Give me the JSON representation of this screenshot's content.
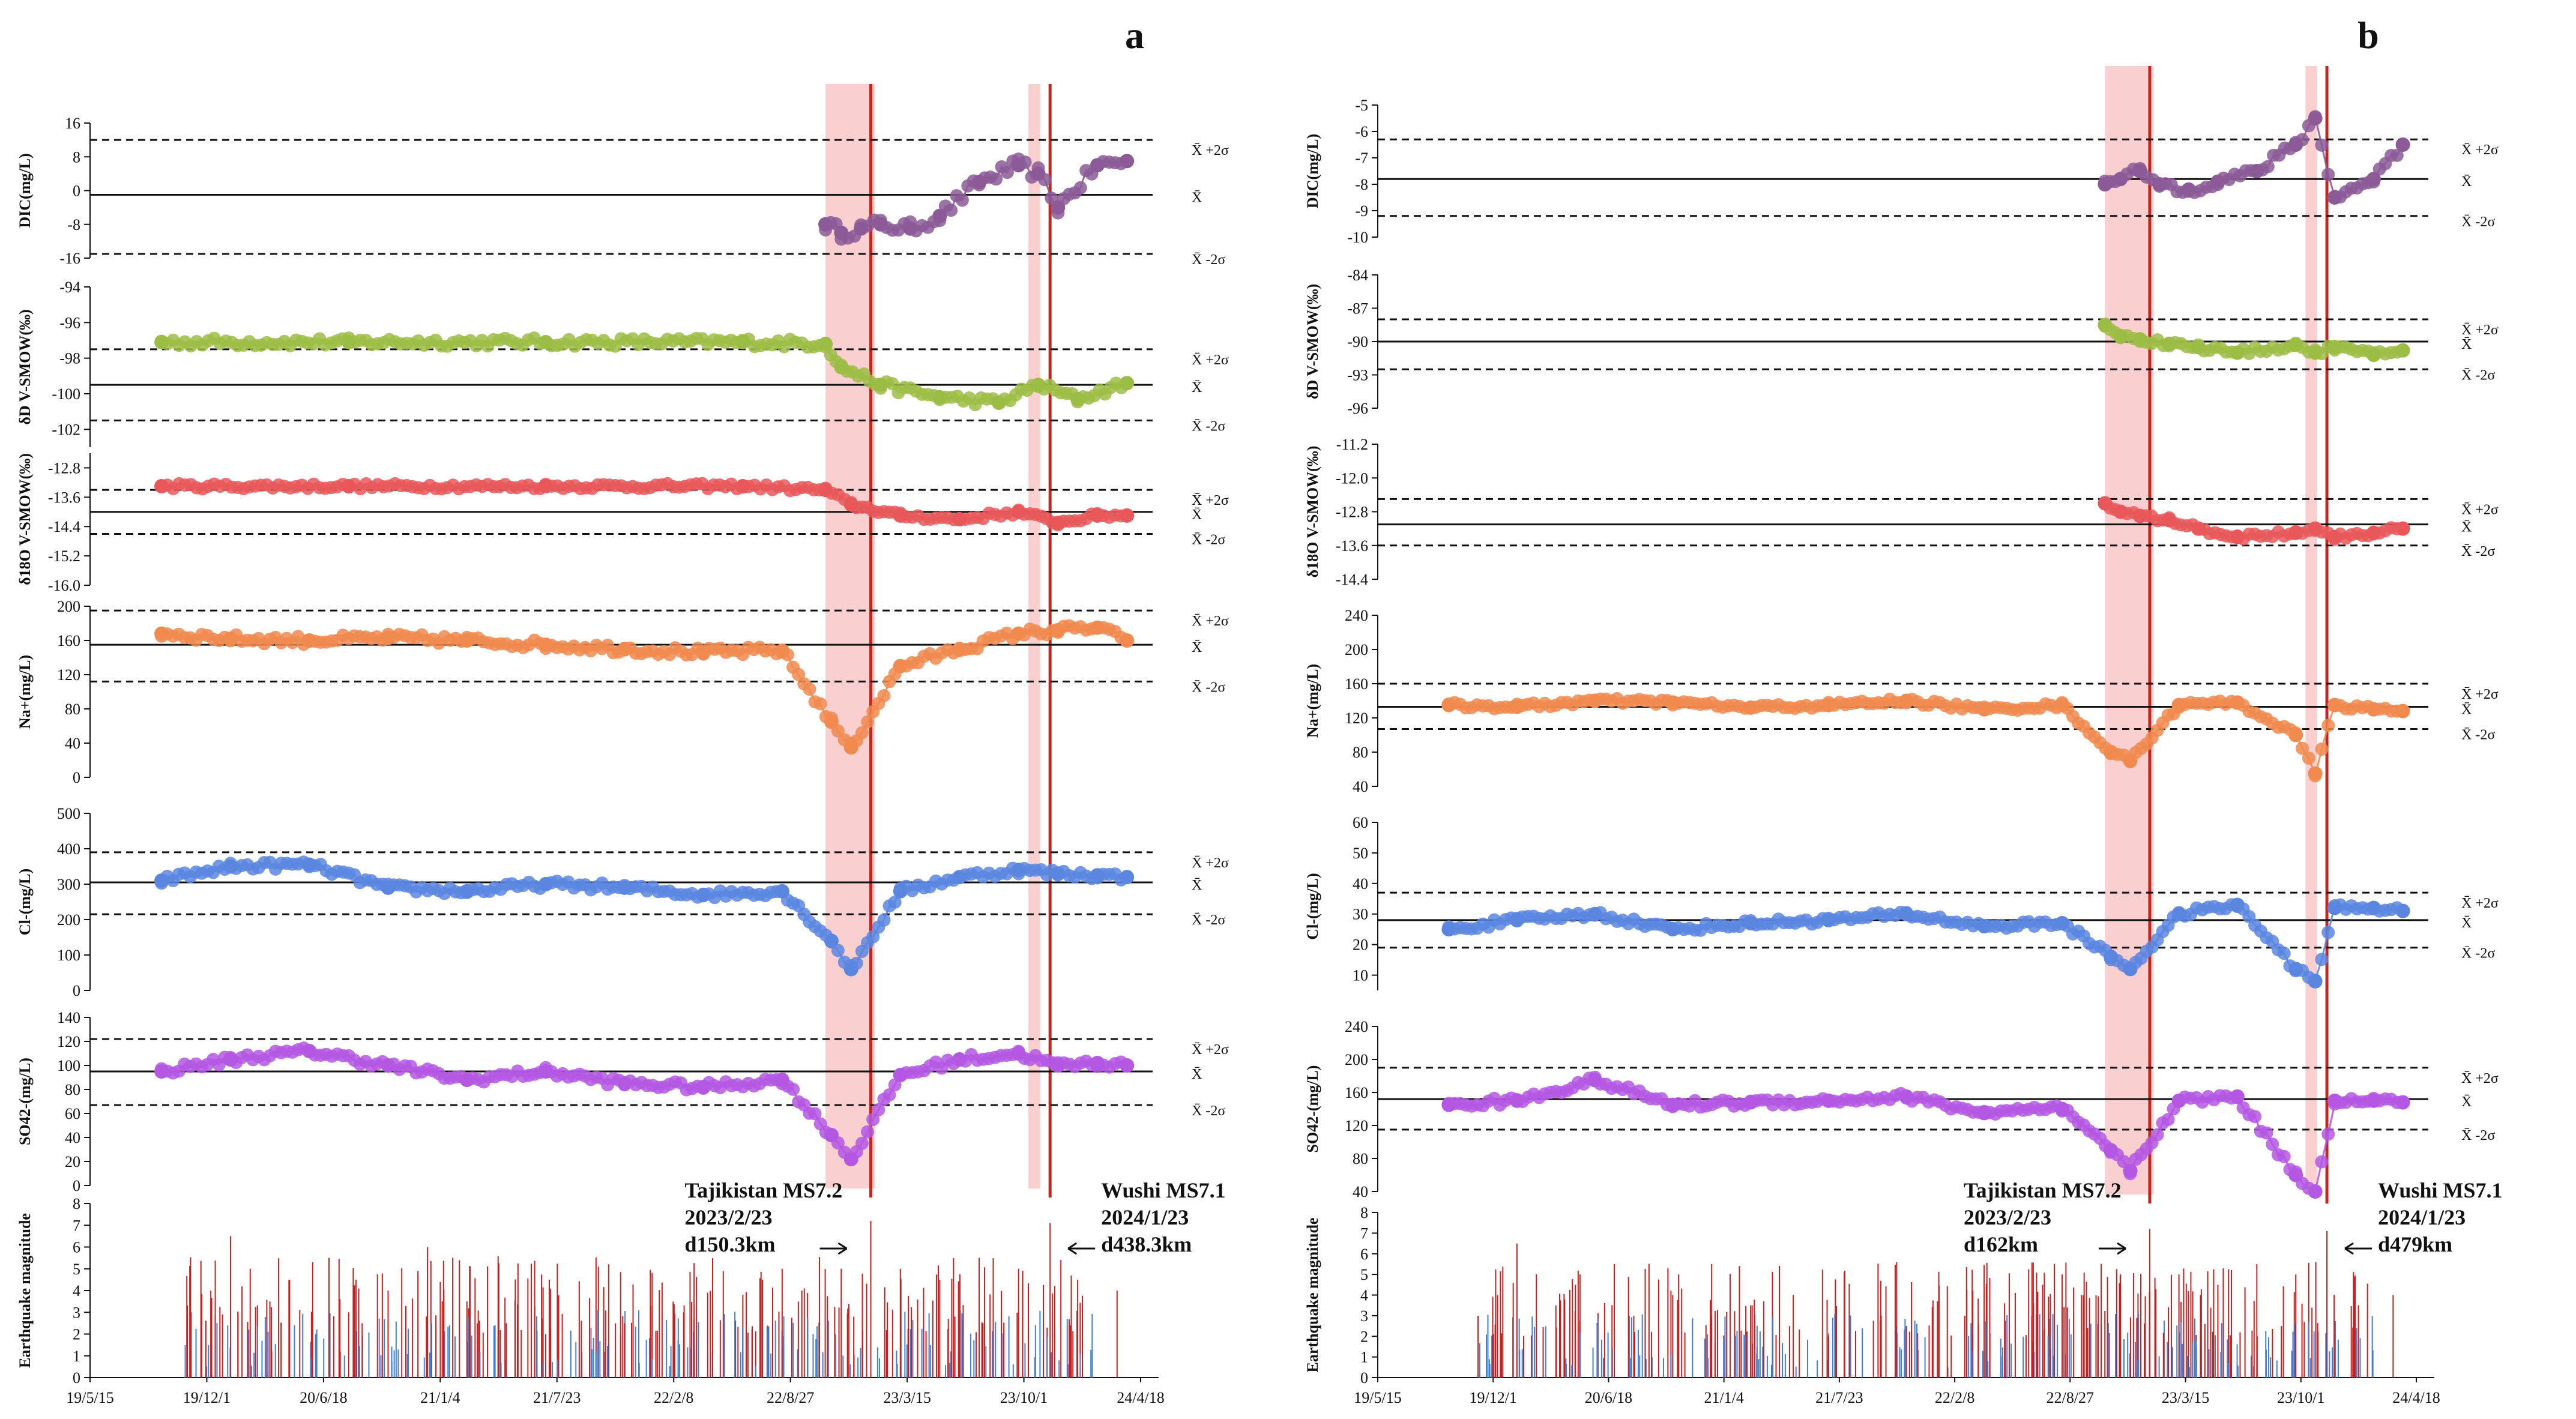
{
  "colors": {
    "dic": "#8b5a97",
    "dD": "#9cbd45",
    "d18O": "#e8585a",
    "na": "#f08a4f",
    "cl": "#5b86e0",
    "so4": "#b457e3",
    "eq_red": "#c81e1e",
    "eq_blue": "#3d7fd8",
    "shade": "#f8b6b6",
    "vline": "#c0281f"
  },
  "x_axis": {
    "labels": [
      "19/5/15",
      "19/12/1",
      "20/6/18",
      "21/1/4",
      "21/7/23",
      "22/2/8",
      "22/8/27",
      "23/3/15",
      "23/10/1",
      "24/4/18"
    ]
  },
  "band_labels": {
    "upper": "X̄ +2σ",
    "mean": "X̄",
    "lower": "X̄ -2σ"
  },
  "panels": [
    {
      "letter": "a",
      "shade_windows": [
        [
          2022.92,
          2023.17
        ],
        [
          2023.95,
          2024.01
        ]
      ],
      "vlines": [
        2023.15,
        2024.06
      ],
      "earthquakes": [
        {
          "label_line1": "Tajikistan MS7.2",
          "label_line2": "2023/2/23",
          "label_line3": "d150.3km"
        },
        {
          "label_line1": "Wushi MS7.1",
          "label_line2": "2024/1/23",
          "label_line3": "d438.3km"
        }
      ],
      "subplots": [
        {
          "key": "dic",
          "ylabel": "DIC(mg/L)",
          "yticks": [
            "16",
            "8",
            "0",
            "-8",
            "-16"
          ],
          "ymin": -16,
          "ymax": 16,
          "mean": -1,
          "upper": 12,
          "lower": -15
        },
        {
          "key": "dD",
          "ylabel": "δD V-SMOW(‰)",
          "yticks": [
            "-94",
            "-96",
            "-98",
            "-100",
            "-102"
          ],
          "ymin": -103,
          "ymax": -94,
          "mean": -99.5,
          "upper": -97.5,
          "lower": -101.5
        },
        {
          "key": "d18O",
          "ylabel": "δ18O V-SMOW(‰)",
          "yticks": [
            "-12.8",
            "-13.6",
            "-14.4",
            "-15.2",
            "-16.0"
          ],
          "ymin": -16.0,
          "ymax": -12.4,
          "mean": -14.0,
          "upper": -13.4,
          "lower": -14.6
        },
        {
          "key": "na",
          "ylabel": "Na+(mg/L)",
          "yticks": [
            "200",
            "160",
            "120",
            "80",
            "40",
            "0"
          ],
          "ymin": 0,
          "ymax": 200,
          "mean": 155,
          "upper": 195,
          "lower": 112
        },
        {
          "key": "cl",
          "ylabel": "Cl-(mg/L)",
          "yticks": [
            "500",
            "400",
            "300",
            "200",
            "100",
            "0"
          ],
          "ymin": 0,
          "ymax": 500,
          "mean": 305,
          "upper": 390,
          "lower": 215
        },
        {
          "key": "so4",
          "ylabel": "SO42-(mg/L)",
          "yticks": [
            "140",
            "120",
            "100",
            "80",
            "60",
            "40",
            "20",
            "0"
          ],
          "ymin": 0,
          "ymax": 140,
          "mean": 95,
          "upper": 122,
          "lower": 67
        },
        {
          "key": "eq",
          "ylabel": "Earthquake magnitude",
          "yticks": [
            "8",
            "7",
            "6",
            "5",
            "4",
            "3",
            "2",
            "1",
            "0"
          ],
          "ymin": 0,
          "ymax": 8
        }
      ]
    },
    {
      "letter": "b",
      "shade_windows": [
        [
          2022.92,
          2023.17
        ],
        [
          2023.95,
          2024.01
        ]
      ],
      "vlines": [
        2023.15,
        2024.06
      ],
      "earthquakes": [
        {
          "label_line1": "Tajikistan MS7.2",
          "label_line2": "2023/2/23",
          "label_line3": "d162km"
        },
        {
          "label_line1": "Wushi MS7.1",
          "label_line2": "2024/1/23",
          "label_line3": "d479km"
        }
      ],
      "subplots": [
        {
          "key": "dic",
          "ylabel": "DIC(mg/L)",
          "yticks": [
            "-5",
            "-6",
            "-7",
            "-8",
            "-9",
            "-10"
          ],
          "ymin": -10,
          "ymax": -5,
          "mean": -7.8,
          "upper": -6.3,
          "lower": -9.2
        },
        {
          "key": "dD",
          "ylabel": "δD V-SMOW(‰)",
          "yticks": [
            "-84",
            "-87",
            "-90",
            "-93",
            "-96"
          ],
          "ymin": -96,
          "ymax": -84,
          "mean": -90,
          "upper": -88,
          "lower": -92.5
        },
        {
          "key": "d18O",
          "ylabel": "δ18O V-SMOW(‰)",
          "yticks": [
            "-11.2",
            "-12.0",
            "-12.8",
            "-13.6",
            "-14.4"
          ],
          "ymin": -14.4,
          "ymax": -11.2,
          "mean": -13.1,
          "upper": -12.5,
          "lower": -13.6
        },
        {
          "key": "na",
          "ylabel": "Na+(mg/L)",
          "yticks": [
            "240",
            "200",
            "160",
            "120",
            "80",
            "40"
          ],
          "ymin": 40,
          "ymax": 240,
          "mean": 133,
          "upper": 160,
          "lower": 107
        },
        {
          "key": "cl",
          "ylabel": "Cl-(mg/L)",
          "yticks": [
            "60",
            "50",
            "40",
            "30",
            "20",
            "10"
          ],
          "ymin": 5,
          "ymax": 60,
          "mean": 28,
          "upper": 37,
          "lower": 19
        },
        {
          "key": "so4",
          "ylabel": "SO42-(mg/L)",
          "yticks": [
            "240",
            "200",
            "160",
            "120",
            "80",
            "40"
          ],
          "ymin": 40,
          "ymax": 240,
          "mean": 152,
          "upper": 190,
          "lower": 115
        },
        {
          "key": "eq",
          "ylabel": "Earthquake magnitude",
          "yticks": [
            "8",
            "7",
            "6",
            "5",
            "4",
            "3",
            "2",
            "1",
            "0"
          ],
          "ymin": 0,
          "ymax": 8
        }
      ]
    }
  ],
  "chart_data": [
    {
      "type": "scatter",
      "panel": "a",
      "title": "a",
      "x_range": [
        2019.37,
        2024.55
      ],
      "series": [
        {
          "name": "DIC(mg/L)",
          "x": [
            2022.92,
            2023.0,
            2023.1,
            2023.2,
            2023.35,
            2023.5,
            2023.7,
            2023.9,
            2024.0,
            2024.1,
            2024.3,
            2024.45
          ],
          "values": [
            -8,
            -10,
            -9,
            -8,
            -9,
            -6,
            2,
            6,
            4,
            -4,
            6,
            7
          ]
        },
        {
          "name": "δD V-SMOW(‰)",
          "x": [
            2019.55,
            2020.5,
            2021.5,
            2022.5,
            2022.92,
            2023.0,
            2023.2,
            2023.5,
            2023.8,
            2024.0,
            2024.2,
            2024.45
          ],
          "values": [
            -97.1,
            -97.1,
            -97.1,
            -97.1,
            -97.2,
            -98.5,
            -99.5,
            -100.2,
            -100.5,
            -99.5,
            -100.3,
            -99.4
          ]
        },
        {
          "name": "δ18O V-SMOW(‰)",
          "x": [
            2019.55,
            2020.5,
            2021.5,
            2022.5,
            2022.92,
            2023.05,
            2023.3,
            2023.6,
            2023.9,
            2024.1,
            2024.3,
            2024.45
          ],
          "values": [
            -13.3,
            -13.3,
            -13.3,
            -13.3,
            -13.4,
            -13.8,
            -14.1,
            -14.2,
            -14.0,
            -14.3,
            -14.1,
            -14.1
          ]
        },
        {
          "name": "Na+(mg/L)",
          "x": [
            2019.55,
            2019.9,
            2020.3,
            2020.7,
            2021.1,
            2021.5,
            2021.9,
            2022.3,
            2022.7,
            2022.95,
            2023.05,
            2023.3,
            2023.6,
            2023.9,
            2024.1,
            2024.3,
            2024.45
          ],
          "values": [
            168,
            162,
            160,
            163,
            160,
            155,
            150,
            146,
            148,
            65,
            35,
            130,
            150,
            168,
            172,
            175,
            160
          ]
        },
        {
          "name": "Cl-(mg/L)",
          "x": [
            2019.55,
            2019.9,
            2020.3,
            2020.7,
            2021.1,
            2021.5,
            2021.9,
            2022.3,
            2022.7,
            2022.95,
            2023.05,
            2023.3,
            2023.6,
            2023.9,
            2024.1,
            2024.3,
            2024.45
          ],
          "values": [
            310,
            350,
            355,
            290,
            280,
            300,
            290,
            270,
            280,
            140,
            60,
            280,
            320,
            340,
            330,
            325,
            320
          ]
        },
        {
          "name": "SO42-(mg/L)",
          "x": [
            2019.55,
            2019.9,
            2020.3,
            2020.7,
            2021.1,
            2021.5,
            2021.9,
            2022.3,
            2022.7,
            2022.95,
            2023.05,
            2023.3,
            2023.6,
            2023.9,
            2024.1,
            2024.3,
            2024.45
          ],
          "values": [
            95,
            105,
            112,
            100,
            88,
            95,
            85,
            82,
            88,
            42,
            22,
            92,
            105,
            110,
            100,
            102,
            100
          ]
        },
        {
          "name": "Earthquake magnitude",
          "x": [
            2019.7,
            2019.8,
            2019.9,
            2020.0,
            2020.1,
            2020.2,
            2020.4,
            2020.5,
            2020.7,
            2020.9,
            2021.1,
            2021.3,
            2021.5,
            2021.9,
            2022.2,
            2022.6,
            2022.7,
            2022.8,
            2023.0,
            2023.15,
            2023.3,
            2023.5,
            2023.7,
            2023.9,
            2024.06,
            2024.2,
            2024.4
          ],
          "values": [
            3.0,
            4.0,
            6.5,
            5.0,
            3.5,
            4.5,
            5.5,
            3.0,
            4.0,
            6.0,
            3.5,
            2.5,
            2.0,
            2.5,
            3.0,
            4.5,
            5.0,
            4.0,
            5.0,
            7.2,
            5.0,
            4.5,
            5.5,
            5.0,
            7.1,
            4.5,
            4.0
          ]
        }
      ],
      "xlabel": "",
      "ylabel": ""
    },
    {
      "type": "scatter",
      "panel": "b",
      "title": "b",
      "x_range": [
        2019.37,
        2024.55
      ],
      "series": [
        {
          "name": "DIC(mg/L)",
          "x": [
            2022.92,
            2023.0,
            2023.1,
            2023.2,
            2023.35,
            2023.5,
            2023.7,
            2023.9,
            2024.0,
            2024.1,
            2024.3,
            2024.45
          ],
          "values": [
            -8,
            -7.8,
            -7.5,
            -8,
            -8.2,
            -7.9,
            -7.5,
            -6.5,
            -5.5,
            -8.5,
            -7.8,
            -6.5
          ]
        },
        {
          "name": "δD V-SMOW(‰)",
          "x": [
            2022.92,
            2023.0,
            2023.1,
            2023.25,
            2023.4,
            2023.6,
            2023.9,
            2024.0,
            2024.1,
            2024.3,
            2024.45
          ],
          "values": [
            -88.5,
            -89.5,
            -89.8,
            -90.2,
            -90.5,
            -91,
            -90.3,
            -91,
            -90.5,
            -91.2,
            -90.8
          ]
        },
        {
          "name": "δ18O V-SMOW(‰)",
          "x": [
            2022.92,
            2023.0,
            2023.1,
            2023.25,
            2023.4,
            2023.6,
            2023.9,
            2024.0,
            2024.1,
            2024.3,
            2024.45
          ],
          "values": [
            -12.6,
            -12.8,
            -12.9,
            -13.0,
            -13.2,
            -13.4,
            -13.3,
            -13.2,
            -13.4,
            -13.3,
            -13.2
          ]
        },
        {
          "name": "Na+(mg/L)",
          "x": [
            2019.55,
            2019.9,
            2020.3,
            2020.7,
            2021.1,
            2021.5,
            2021.9,
            2022.3,
            2022.7,
            2022.95,
            2023.05,
            2023.3,
            2023.6,
            2023.9,
            2024.0,
            2024.1,
            2024.3,
            2024.45
          ],
          "values": [
            135,
            133,
            140,
            138,
            132,
            135,
            140,
            130,
            135,
            80,
            70,
            135,
            138,
            100,
            55,
            135,
            130,
            128
          ]
        },
        {
          "name": "Cl-(mg/L)",
          "x": [
            2019.55,
            2019.9,
            2020.3,
            2020.7,
            2021.1,
            2021.5,
            2021.9,
            2022.3,
            2022.7,
            2022.95,
            2023.05,
            2023.3,
            2023.6,
            2023.9,
            2024.0,
            2024.1,
            2024.3,
            2024.45
          ],
          "values": [
            25,
            28,
            30,
            25,
            27,
            28,
            30,
            26,
            27,
            16,
            12,
            30,
            33,
            12,
            8,
            32,
            32,
            31
          ]
        },
        {
          "name": "SO42-(mg/L)",
          "x": [
            2019.55,
            2019.9,
            2020.3,
            2020.7,
            2021.1,
            2021.5,
            2021.9,
            2022.3,
            2022.7,
            2022.95,
            2023.05,
            2023.3,
            2023.6,
            2023.9,
            2024.0,
            2024.1,
            2024.3,
            2024.45
          ],
          "values": [
            145,
            150,
            175,
            145,
            148,
            150,
            155,
            135,
            140,
            90,
            65,
            150,
            155,
            60,
            40,
            150,
            150,
            148
          ]
        },
        {
          "name": "Earthquake magnitude",
          "x": [
            2019.7,
            2019.8,
            2019.9,
            2020.0,
            2020.1,
            2020.2,
            2020.4,
            2020.5,
            2020.7,
            2020.9,
            2021.1,
            2021.3,
            2021.5,
            2021.9,
            2022.2,
            2022.6,
            2022.7,
            2022.8,
            2023.0,
            2023.15,
            2023.3,
            2023.5,
            2023.7,
            2023.9,
            2024.06,
            2024.2,
            2024.4
          ],
          "values": [
            3.0,
            4.0,
            6.5,
            5.0,
            3.5,
            4.5,
            5.5,
            3.0,
            4.0,
            5.5,
            3.5,
            2.5,
            2.0,
            2.5,
            3.0,
            4.5,
            5.0,
            4.0,
            5.0,
            7.2,
            5.0,
            4.5,
            5.5,
            5.0,
            7.1,
            4.5,
            4.0
          ]
        }
      ],
      "xlabel": "",
      "ylabel": ""
    }
  ]
}
